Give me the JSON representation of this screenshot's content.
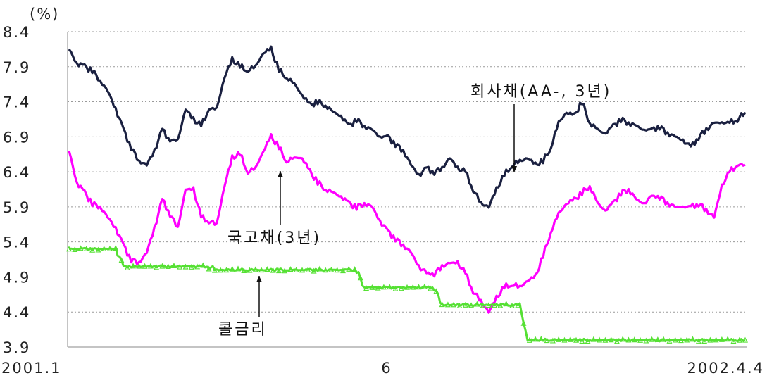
{
  "chart_data": {
    "type": "line",
    "unit_label": "(%)",
    "x_tick_labels": [
      "2001.1",
      "6",
      "2002.4.4"
    ],
    "y_ticks": [
      3.9,
      4.4,
      4.9,
      5.4,
      5.9,
      6.4,
      6.9,
      7.4,
      7.9,
      8.4
    ],
    "ylim": [
      3.9,
      8.4
    ],
    "grid": "horizontal dotted",
    "series": [
      {
        "name": "회사채(AA-, 3년)",
        "color": "#1a2040",
        "values": [
          8.15,
          7.95,
          7.9,
          7.85,
          7.7,
          7.55,
          7.3,
          7.0,
          6.75,
          6.55,
          6.5,
          6.7,
          7.0,
          6.85,
          6.85,
          7.3,
          7.15,
          7.05,
          7.3,
          7.3,
          7.75,
          8.0,
          7.9,
          7.85,
          7.9,
          8.1,
          8.15,
          7.85,
          7.75,
          7.65,
          7.5,
          7.35,
          7.4,
          7.35,
          7.25,
          7.2,
          7.05,
          7.15,
          7.05,
          7.0,
          6.9,
          6.9,
          6.8,
          6.7,
          6.5,
          6.35,
          6.45,
          6.4,
          6.45,
          6.6,
          6.45,
          6.4,
          6.15,
          5.95,
          5.9,
          6.15,
          6.35,
          6.5,
          6.55,
          6.6,
          6.5,
          6.55,
          6.75,
          7.1,
          7.25,
          7.2,
          7.4,
          7.1,
          7.0,
          6.95,
          7.05,
          7.15,
          7.1,
          7.05,
          7.0,
          7.0,
          7.05,
          6.95,
          6.9,
          6.85,
          6.75,
          6.9,
          7.0,
          7.1,
          7.1,
          7.1,
          7.15,
          7.25
        ]
      },
      {
        "name": "국고채(3년)",
        "color": "#ff00ff",
        "values": [
          6.7,
          6.25,
          6.1,
          5.95,
          5.9,
          5.75,
          5.6,
          5.35,
          5.15,
          5.1,
          5.25,
          5.6,
          6.0,
          5.8,
          5.6,
          6.15,
          6.15,
          5.75,
          5.7,
          5.65,
          6.2,
          6.6,
          6.65,
          6.4,
          6.45,
          6.7,
          6.9,
          6.75,
          6.55,
          6.6,
          6.6,
          6.4,
          6.25,
          6.15,
          6.1,
          6.05,
          5.95,
          5.9,
          5.95,
          5.9,
          5.7,
          5.55,
          5.45,
          5.35,
          5.25,
          5.05,
          4.95,
          4.95,
          5.05,
          5.1,
          5.1,
          4.95,
          4.7,
          4.55,
          4.4,
          4.6,
          4.75,
          4.8,
          4.75,
          4.85,
          4.9,
          5.2,
          5.55,
          5.8,
          5.95,
          6.0,
          6.1,
          6.2,
          5.95,
          5.85,
          5.95,
          6.1,
          6.15,
          6.0,
          5.95,
          6.05,
          6.05,
          5.95,
          5.9,
          5.9,
          5.9,
          5.95,
          5.85,
          5.75,
          6.2,
          6.4,
          6.5,
          6.5
        ]
      },
      {
        "name": "콜금리",
        "color": "#55e033",
        "values": [
          5.3,
          5.3,
          5.3,
          5.3,
          5.3,
          5.3,
          5.3,
          5.05,
          5.05,
          5.05,
          5.05,
          5.05,
          5.05,
          5.05,
          5.05,
          5.05,
          5.05,
          5.05,
          5.05,
          5.0,
          5.0,
          5.0,
          5.0,
          5.0,
          5.0,
          5.0,
          5.0,
          5.0,
          5.0,
          5.0,
          5.0,
          5.0,
          5.0,
          5.0,
          5.0,
          5.0,
          5.0,
          5.0,
          4.75,
          4.75,
          4.75,
          4.75,
          4.75,
          4.75,
          4.75,
          4.75,
          4.75,
          4.75,
          4.5,
          4.5,
          4.5,
          4.5,
          4.5,
          4.5,
          4.5,
          4.5,
          4.5,
          4.5,
          4.5,
          4.0,
          4.0,
          4.0,
          4.0,
          4.0,
          4.0,
          4.0,
          4.0,
          4.0,
          4.0,
          4.0,
          4.0,
          4.0,
          4.0,
          4.0,
          4.0,
          4.0,
          4.0,
          4.0,
          4.0,
          4.0,
          4.0,
          4.0,
          4.0,
          4.0,
          4.0,
          4.0,
          4.0,
          4.0
        ]
      }
    ],
    "annotations": [
      {
        "text": "회사채(AA-, 3년)",
        "series": 0
      },
      {
        "text": "국고채(3년)",
        "series": 1
      },
      {
        "text": "콜금리",
        "series": 2
      }
    ]
  }
}
